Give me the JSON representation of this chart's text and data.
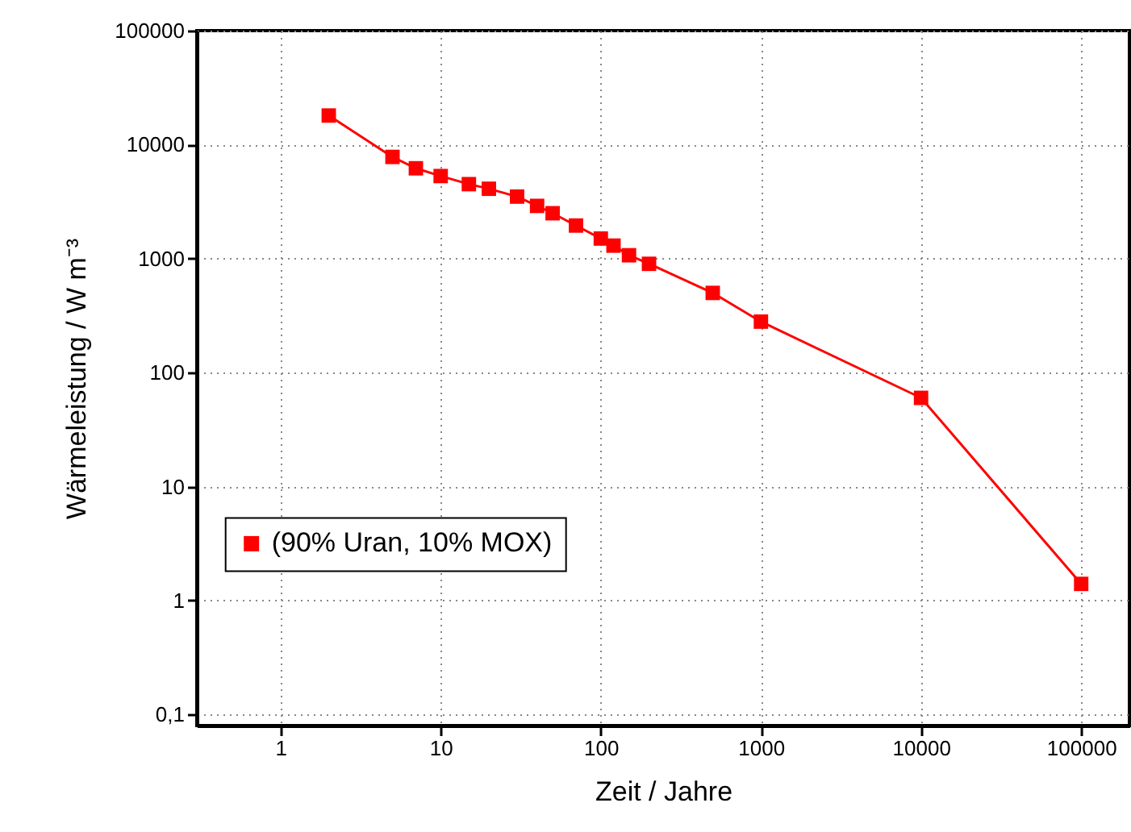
{
  "chart_data": {
    "type": "line",
    "xlabel": "Zeit  /  Jahre",
    "ylabel": "Wärmeleistung  /  W m⁻³",
    "log": "xy",
    "xlim": [
      0.3,
      200000
    ],
    "xticks": [
      1,
      10,
      100,
      1000,
      10000,
      100000
    ],
    "ylim": [
      0.08,
      100000
    ],
    "yticks": [
      {
        "value": 0.1,
        "label": "0,1"
      },
      1,
      10,
      100,
      1000,
      10000,
      100000
    ],
    "grid": true,
    "legend": "left",
    "marker": "square",
    "line_style": "solid",
    "x": [
      2,
      5,
      7,
      10,
      15,
      20,
      30,
      40,
      50,
      70,
      100,
      120,
      150,
      200,
      500,
      1000,
      10000,
      100000
    ],
    "series": [
      {
        "name": "(90% Uran, 10% MOX)",
        "color": "#ff0000",
        "values": [
          18000,
          7800,
          6200,
          5300,
          4500,
          4100,
          3500,
          2900,
          2500,
          1950,
          1500,
          1300,
          1070,
          900,
          500,
          280,
          60,
          1.4
        ]
      }
    ]
  }
}
